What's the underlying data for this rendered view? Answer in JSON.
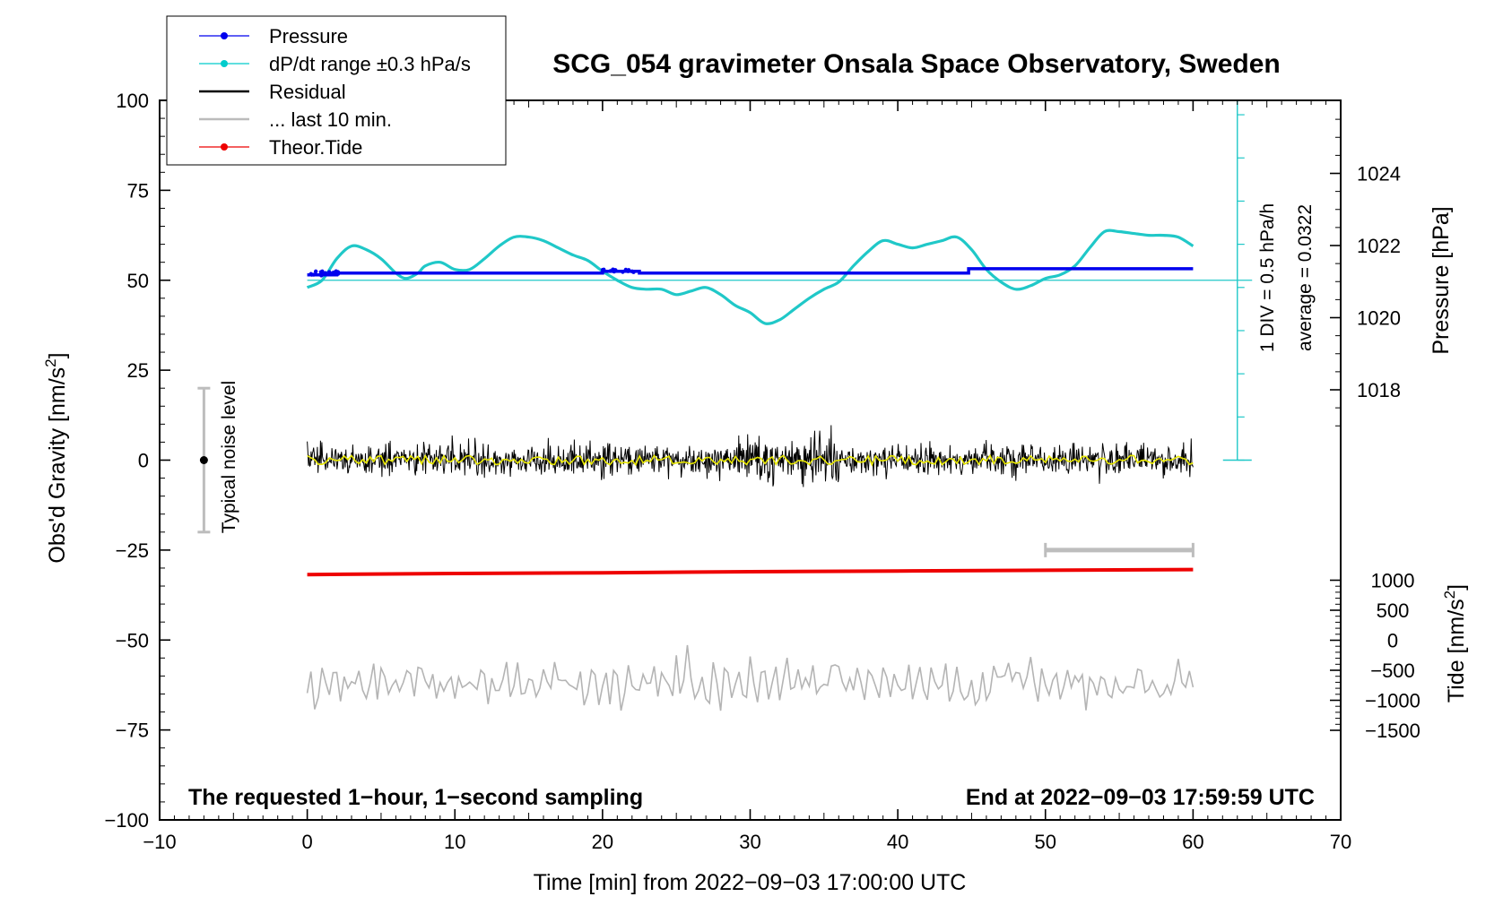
{
  "chart_data": {
    "type": "line",
    "title": "SCG_054 gravimeter Onsala Space Observatory, Sweden",
    "xlabel": "Time [min] from 2022−09−03 17:00:00 UTC",
    "xlim": [
      -10,
      70
    ],
    "xticks": [
      -10,
      0,
      10,
      20,
      30,
      40,
      50,
      60,
      70
    ],
    "xtick_labels": [
      "−10",
      "0",
      "10",
      "20",
      "30",
      "40",
      "50",
      "60",
      "70"
    ],
    "left_axis": {
      "label_main": "Obs'd Gravity [nm/s",
      "label_sup": "2",
      "label_end": "]",
      "ylim": [
        -100,
        100
      ],
      "ticks": [
        100,
        75,
        50,
        25,
        0,
        -25,
        -50,
        -75,
        -100
      ],
      "tick_labels": [
        "100",
        "75",
        "50",
        "25",
        "0",
        "−25",
        "−50",
        "−75",
        "−100"
      ]
    },
    "pressure_axis": {
      "label": "Pressure [hPa]",
      "ticks": [
        1024,
        1022,
        1020,
        1018
      ],
      "tick_labels": [
        "1024",
        "1022",
        "1020",
        "1018"
      ]
    },
    "tide_axis": {
      "label_main": "Tide [nm/s",
      "label_sup": "2",
      "label_end": "]",
      "ticks": [
        1000,
        500,
        0,
        -500,
        -1000,
        -1500
      ],
      "tick_labels": [
        "1000",
        "500",
        "0",
        "−500",
        "−1000",
        "−1500"
      ]
    },
    "dpdt_scale": {
      "label_div": "1 DIV = 0.5 hPa/h",
      "label_avg": "average = 0.0322"
    },
    "noise_bar": {
      "label": "Typical noise level",
      "x": -7,
      "ymin": -20,
      "ymax": 20,
      "center": 0
    },
    "last10_marker": {
      "x_start": 50,
      "x_end": 60,
      "y": -25
    },
    "legend": [
      {
        "label": "Pressure",
        "color": "#0000ee",
        "marker": true
      },
      {
        "label": "dP/dt range ±0.3 hPa/s",
        "color": "#00cccc",
        "marker": true
      },
      {
        "label": "Residual",
        "color": "#000000",
        "marker": false
      },
      {
        "label": "... last 10 min.",
        "color": "#bbbbbb",
        "marker": false
      },
      {
        "label": "Theor.Tide",
        "color": "#ee0000",
        "marker": true
      }
    ],
    "notes": {
      "left": "The requested 1−hour, 1−second sampling",
      "right": "End at 2022−09−03 17:59:59 UTC"
    },
    "series": [
      {
        "name": "Pressure",
        "color": "#0000ee",
        "x": [
          0,
          2,
          2,
          20,
          20,
          22.5,
          22.5,
          44.8,
          44.8,
          60
        ],
        "y": [
          51.5,
          51.5,
          52,
          52,
          52.5,
          52.5,
          52,
          52,
          53.2,
          53.2
        ]
      },
      {
        "name": "dP/dt",
        "color": "#20c8c8",
        "x": [
          0,
          1,
          2,
          3,
          4,
          5,
          6,
          6.7,
          7.5,
          8,
          9,
          10,
          11,
          12,
          13,
          14,
          15,
          16,
          17,
          18,
          19,
          20,
          21,
          22,
          23,
          24,
          25,
          26,
          27,
          28,
          29,
          30,
          31,
          32,
          33,
          34,
          35,
          36,
          37,
          38,
          39,
          40,
          41,
          42,
          43,
          44,
          45,
          46,
          47,
          48,
          49,
          50,
          51,
          52,
          53,
          54,
          55,
          56,
          57,
          58,
          59,
          60
        ],
        "y": [
          48,
          50,
          56,
          59.5,
          58.5,
          56,
          52,
          50.5,
          52,
          54,
          55,
          53,
          53,
          56,
          59.5,
          62,
          62,
          61,
          59,
          57,
          55.5,
          52.5,
          50,
          48,
          47.5,
          47.5,
          46,
          47,
          48,
          46,
          43,
          41,
          38,
          39,
          42,
          45,
          47.5,
          49.5,
          54,
          58,
          61,
          60,
          59,
          60,
          61,
          62,
          58.5,
          53,
          49.5,
          47.5,
          48.5,
          50.5,
          51.5,
          54,
          59,
          63.5,
          63.5,
          63,
          62.5,
          62.5,
          62,
          59.5
        ]
      },
      {
        "name": "Theor.Tide",
        "color": "#ee0000",
        "x": [
          0,
          10,
          20,
          30,
          40,
          50,
          60
        ],
        "y": [
          -31.8,
          -31.5,
          -31.3,
          -31,
          -30.8,
          -30.6,
          -30.4
        ]
      }
    ]
  }
}
